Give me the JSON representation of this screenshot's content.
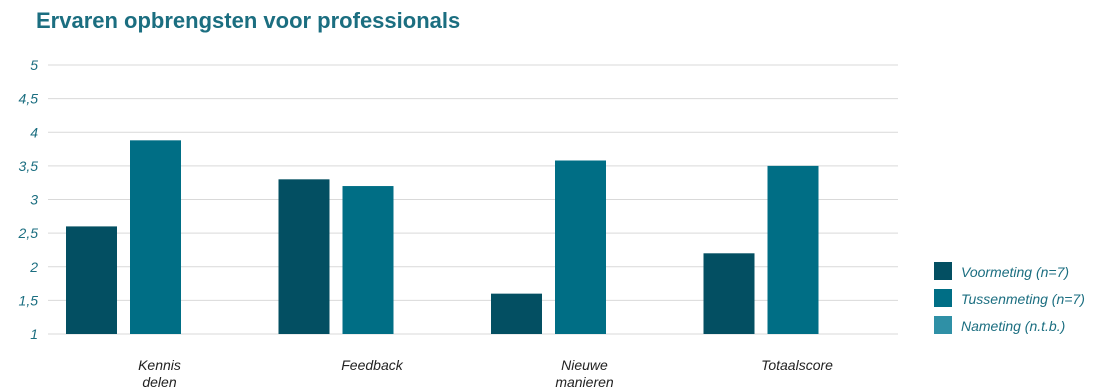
{
  "chart_data": {
    "type": "bar",
    "title": "Ervaren opbrengsten voor professionals",
    "categories": [
      [
        "Kennis",
        "delen"
      ],
      [
        "Feedback"
      ],
      [
        "Nieuwe",
        "manieren"
      ],
      [
        "Totaalscore"
      ]
    ],
    "series": [
      {
        "name": "Voormeting (n=7)",
        "color": "#034f62",
        "values": [
          2.6,
          3.3,
          1.6,
          2.2
        ]
      },
      {
        "name": "Tussenmeting (n=7)",
        "color": "#006e85",
        "values": [
          3.88,
          3.2,
          3.58,
          3.5
        ]
      },
      {
        "name": "Nameting (n.t.b.)",
        "color": "#2f90a6",
        "values": [
          null,
          null,
          null,
          null
        ]
      }
    ],
    "ylim": [
      1,
      5
    ],
    "yticks": [
      "1",
      "1,5",
      "2",
      "2,5",
      "3",
      "3,5",
      "4",
      "4,5",
      "5"
    ],
    "grid": true,
    "legend_position": "right"
  }
}
